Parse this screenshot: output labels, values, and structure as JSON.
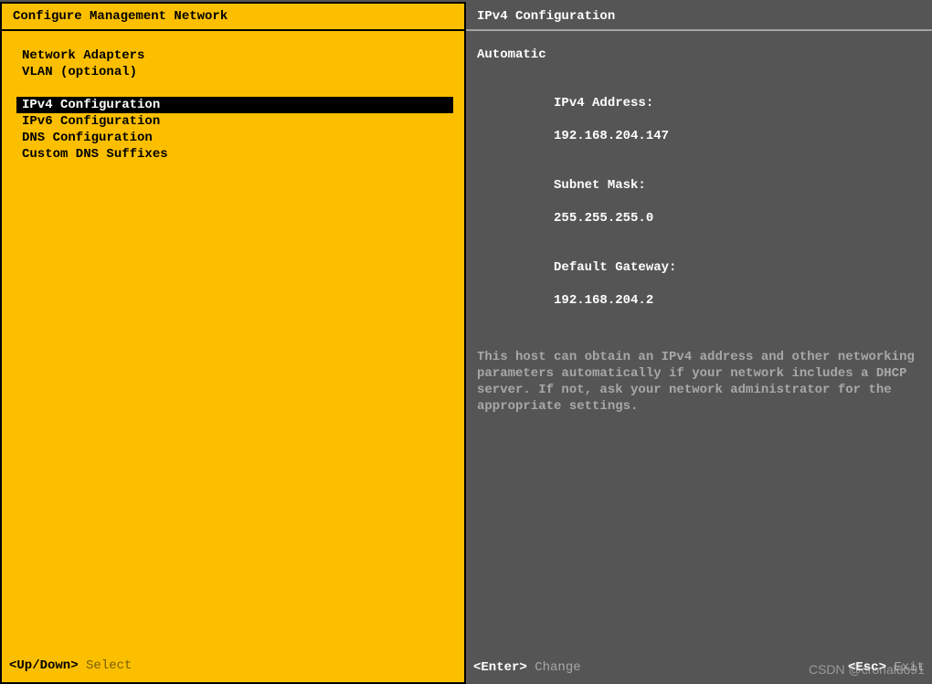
{
  "colors": {
    "left_bg": "#fcbf00",
    "right_bg": "#555555",
    "selection_bg": "#000000",
    "selection_fg": "#ffffff",
    "left_fg": "#000000",
    "right_fg": "#ffffff",
    "muted_right": "#a8a8a8",
    "muted_left": "#7a5e00",
    "divider": "#a3a3a3"
  },
  "left": {
    "title": "Configure Management Network",
    "menu": {
      "group1": [
        "Network Adapters",
        "VLAN (optional)"
      ],
      "group2": [
        "IPv4 Configuration",
        "IPv6 Configuration",
        "DNS Configuration",
        "Custom DNS Suffixes"
      ],
      "selected": "IPv4 Configuration"
    },
    "footer": {
      "key": "<Up/Down>",
      "label": "Select"
    }
  },
  "right": {
    "title": "IPv4 Configuration",
    "mode": "Automatic",
    "fields": {
      "ipv4_address_label": "IPv4 Address:",
      "ipv4_address_value": "192.168.204.147",
      "subnet_mask_label": "Subnet Mask:",
      "subnet_mask_value": "255.255.255.0",
      "default_gateway_label": "Default Gateway:",
      "default_gateway_value": "192.168.204.2"
    },
    "description": "This host can obtain an IPv4 address and other networking parameters automatically if your network includes a DHCP server. If not, ask your network administrator for the appropriate settings.",
    "footer": {
      "enter_key": "<Enter>",
      "enter_label": "Change",
      "esc_key": "<Esc>",
      "esc_label": "Exit"
    }
  },
  "watermark": "CSDN @cronaldo91"
}
